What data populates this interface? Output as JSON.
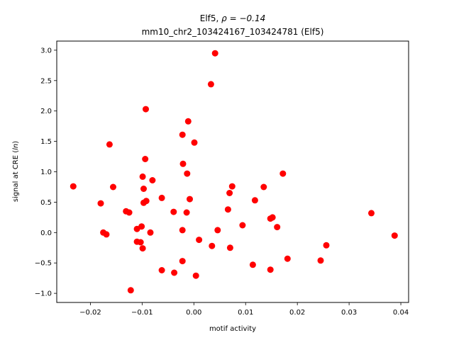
{
  "chart_data": {
    "type": "scatter",
    "title_line1": "Elf5, ",
    "title_rho": "ρ = −0.14",
    "title_line2": "mm10_chr2_103424167_103424781 (Elf5)",
    "xlabel": "motif activity",
    "ylabel_prefix": "signal at CRE (",
    "ylabel_italic": "ln",
    "ylabel_suffix": ")",
    "xlim": [
      -0.0265,
      0.0415
    ],
    "ylim": [
      -1.15,
      3.15
    ],
    "xticks": [
      -0.02,
      -0.01,
      0.0,
      0.01,
      0.02,
      0.03,
      0.04
    ],
    "xtick_labels": [
      "−0.02",
      "−0.01",
      "0.00",
      "0.01",
      "0.02",
      "0.03",
      "0.04"
    ],
    "yticks": [
      -1.0,
      -0.5,
      0.0,
      0.5,
      1.0,
      1.5,
      2.0,
      2.5,
      3.0
    ],
    "ytick_labels": [
      "−1.0",
      "−0.5",
      "0.0",
      "0.5",
      "1.0",
      "1.5",
      "2.0",
      "2.5",
      "3.0"
    ],
    "grid": false,
    "marker_color": "#ff0000",
    "points": [
      {
        "x": 0.0041,
        "y": 2.95
      },
      {
        "x": 0.0033,
        "y": 2.44
      },
      {
        "x": -0.0093,
        "y": 2.03
      },
      {
        "x": -0.0011,
        "y": 1.83
      },
      {
        "x": -0.0022,
        "y": 1.61
      },
      {
        "x": 0.0001,
        "y": 1.48
      },
      {
        "x": -0.0163,
        "y": 1.45
      },
      {
        "x": -0.0094,
        "y": 1.21
      },
      {
        "x": -0.0021,
        "y": 1.13
      },
      {
        "x": -0.0013,
        "y": 0.97
      },
      {
        "x": 0.0172,
        "y": 0.97
      },
      {
        "x": -0.0099,
        "y": 0.92
      },
      {
        "x": -0.008,
        "y": 0.86
      },
      {
        "x": -0.0233,
        "y": 0.76
      },
      {
        "x": -0.0156,
        "y": 0.75
      },
      {
        "x": 0.0074,
        "y": 0.76
      },
      {
        "x": 0.0135,
        "y": 0.75
      },
      {
        "x": -0.0097,
        "y": 0.72
      },
      {
        "x": 0.0069,
        "y": 0.65
      },
      {
        "x": -0.0062,
        "y": 0.57
      },
      {
        "x": -0.0008,
        "y": 0.55
      },
      {
        "x": 0.0118,
        "y": 0.53
      },
      {
        "x": -0.0092,
        "y": 0.52
      },
      {
        "x": -0.0097,
        "y": 0.49
      },
      {
        "x": -0.018,
        "y": 0.48
      },
      {
        "x": 0.0066,
        "y": 0.38
      },
      {
        "x": -0.0131,
        "y": 0.35
      },
      {
        "x": -0.0039,
        "y": 0.34
      },
      {
        "x": -0.0125,
        "y": 0.33
      },
      {
        "x": -0.0014,
        "y": 0.33
      },
      {
        "x": 0.0343,
        "y": 0.32
      },
      {
        "x": 0.0152,
        "y": 0.25
      },
      {
        "x": 0.0148,
        "y": 0.23
      },
      {
        "x": 0.0094,
        "y": 0.12
      },
      {
        "x": -0.0101,
        "y": 0.1
      },
      {
        "x": 0.0161,
        "y": 0.09
      },
      {
        "x": -0.011,
        "y": 0.06
      },
      {
        "x": -0.0022,
        "y": 0.04
      },
      {
        "x": 0.0046,
        "y": 0.04
      },
      {
        "x": -0.0175,
        "y": 0.0
      },
      {
        "x": -0.0084,
        "y": 0.0
      },
      {
        "x": -0.0169,
        "y": -0.03
      },
      {
        "x": 0.0388,
        "y": -0.05
      },
      {
        "x": 0.001,
        "y": -0.12
      },
      {
        "x": -0.011,
        "y": -0.15
      },
      {
        "x": -0.0103,
        "y": -0.16
      },
      {
        "x": 0.0256,
        "y": -0.21
      },
      {
        "x": 0.0035,
        "y": -0.22
      },
      {
        "x": -0.0099,
        "y": -0.26
      },
      {
        "x": 0.007,
        "y": -0.25
      },
      {
        "x": 0.0181,
        "y": -0.43
      },
      {
        "x": 0.0245,
        "y": -0.46
      },
      {
        "x": -0.0022,
        "y": -0.47
      },
      {
        "x": 0.0114,
        "y": -0.53
      },
      {
        "x": 0.0148,
        "y": -0.61
      },
      {
        "x": -0.0062,
        "y": -0.62
      },
      {
        "x": -0.0038,
        "y": -0.66
      },
      {
        "x": 0.0004,
        "y": -0.71
      },
      {
        "x": -0.0122,
        "y": -0.95
      }
    ]
  }
}
